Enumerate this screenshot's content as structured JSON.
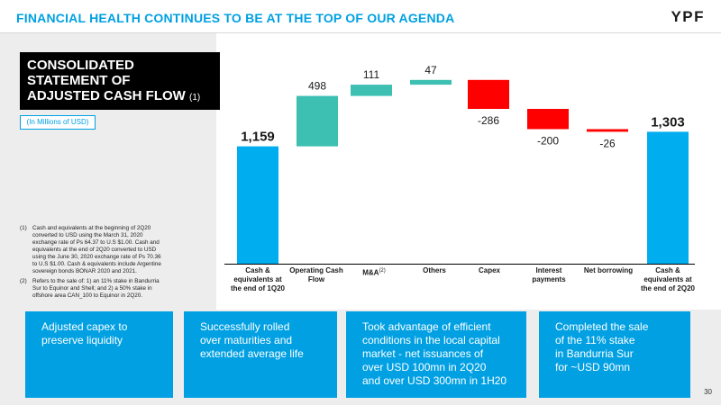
{
  "header": {
    "title": "FINANCIAL HEALTH CONTINUES TO BE AT THE TOP OF OUR AGENDA",
    "logo": "YPF"
  },
  "panel": {
    "title_lines": [
      "CONSOLIDATED",
      "STATEMENT OF",
      "ADJUSTED CASH FLOW"
    ],
    "title_footnote": "(1)",
    "units": "(In Millions of USD)",
    "notes": [
      {
        "marker": "(1)",
        "lines": [
          "Cash and equivalents at the beginning of 2Q20",
          "converted to USD using the March 31, 2020",
          "exchange rate of Ps 64.37 to U.S $1.00. Cash and",
          "equivalents at the end of 2Q20 converted to USD",
          "using the June 30, 2020 exchange rate of Ps 70.36",
          "to U.S $1.00. Cash & equivalents include Argentine",
          "sovereign bonds BONAR 2020 and 2021."
        ]
      },
      {
        "marker": "(2)",
        "lines": [
          "Refers to the sale of: 1) an 11% stake in Bandurria",
          "Sur to Equinor and Shell; and 2) a 50% stake in",
          "offshore area CAN_100 to Equinor in 2Q20."
        ]
      }
    ]
  },
  "chart_data": {
    "type": "bar",
    "subtype": "waterfall",
    "categories": [
      "Cash & equivalents at the end of 1Q20",
      "Operating Cash Flow",
      "M&A",
      "Others",
      "Capex",
      "Interest payments",
      "Net borrowing",
      "Cash & equivalents at the end of 2Q20"
    ],
    "category_lines": [
      [
        "Cash &",
        "equivalents at",
        "the end of 1Q20"
      ],
      [
        "Operating Cash",
        "Flow"
      ],
      [
        "M&A"
      ],
      [
        "Others"
      ],
      [
        "Capex"
      ],
      [
        "Interest",
        "payments"
      ],
      [
        "Net borrowing"
      ],
      [
        "Cash &",
        "equivalents at",
        "the end of 2Q20"
      ]
    ],
    "category_footnotes": [
      "",
      "",
      "(2)",
      "",
      "",
      "",
      "",
      ""
    ],
    "values": [
      1159,
      498,
      111,
      47,
      -286,
      -200,
      -26,
      1303
    ],
    "labels": [
      "1,159",
      "498",
      "111",
      "47",
      "-286",
      "-200",
      "-26",
      "1,303"
    ],
    "kinds": [
      "total",
      "delta",
      "delta",
      "delta",
      "delta",
      "delta",
      "delta",
      "total"
    ],
    "colors": {
      "total": "#00aeef",
      "increase": "#3dbfb2",
      "decrease": "#ff0000"
    },
    "grid": false,
    "legend": "none"
  },
  "boxes": [
    {
      "lines": [
        "Adjusted capex to",
        "preserve liquidity"
      ]
    },
    {
      "lines": [
        "Successfully rolled",
        "over maturities and",
        "extended  average life"
      ]
    },
    {
      "lines": [
        "Took advantage of efficient",
        "conditions in the local capital",
        "market - net issuances of",
        "over USD 100mn in 2Q20",
        "and over USD 300mn in 1H20"
      ]
    },
    {
      "lines": [
        "Completed the sale",
        "of the 11% stake",
        "in Bandurria Sur",
        "for ~USD 90mn"
      ]
    }
  ],
  "page_number": "30"
}
